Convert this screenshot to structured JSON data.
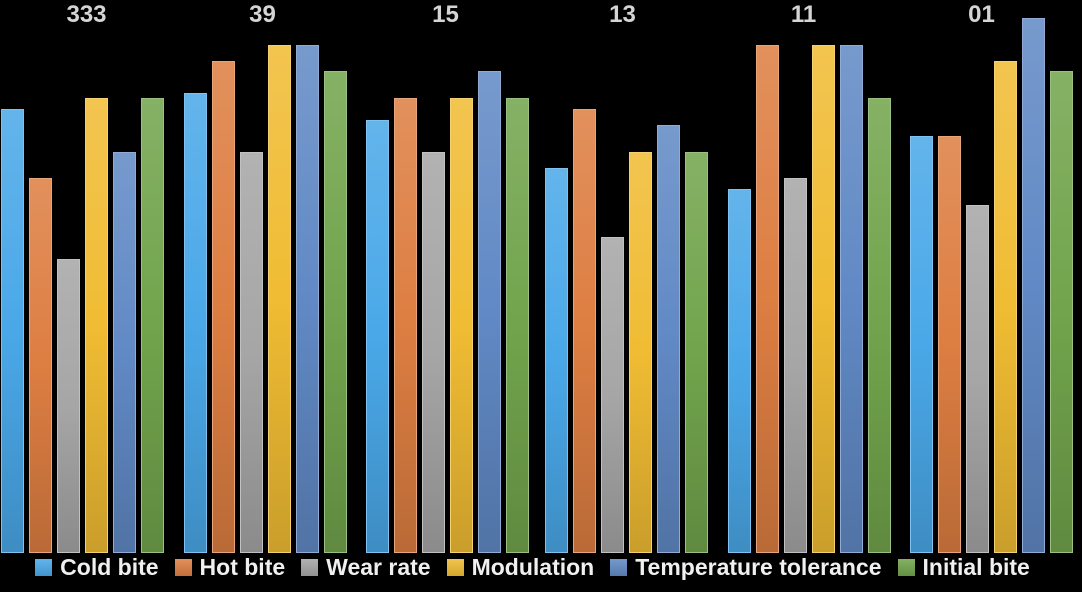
{
  "chart_data": {
    "type": "bar",
    "title": "",
    "categories": [
      "333",
      "39",
      "15",
      "13",
      "11",
      "01"
    ],
    "series": [
      {
        "name": "Cold bite",
        "color": "#4AA8E8",
        "values": [
          8.3,
          8.6,
          8.1,
          7.2,
          6.8,
          7.8
        ]
      },
      {
        "name": "Hot bite",
        "color": "#DD7E42",
        "values": [
          7.0,
          9.2,
          8.5,
          8.3,
          9.5,
          7.8
        ]
      },
      {
        "name": "Wear rate",
        "color": "#A6A6A6",
        "values": [
          5.5,
          7.5,
          7.5,
          5.9,
          7.0,
          6.5
        ]
      },
      {
        "name": "Modulation",
        "color": "#F0BC33",
        "values": [
          8.5,
          9.5,
          8.5,
          7.5,
          9.5,
          9.2
        ]
      },
      {
        "name": "Temperature tolerance",
        "color": "#6189C5",
        "values": [
          7.5,
          9.5,
          9.0,
          8.0,
          9.5,
          10.0
        ]
      },
      {
        "name": "Initial bite",
        "color": "#71A44C",
        "values": [
          8.5,
          9.0,
          8.5,
          7.5,
          8.5,
          9.0
        ]
      }
    ],
    "ylim": [
      0,
      10
    ],
    "legend_position": "bottom",
    "background": "#000000",
    "grid": false
  }
}
